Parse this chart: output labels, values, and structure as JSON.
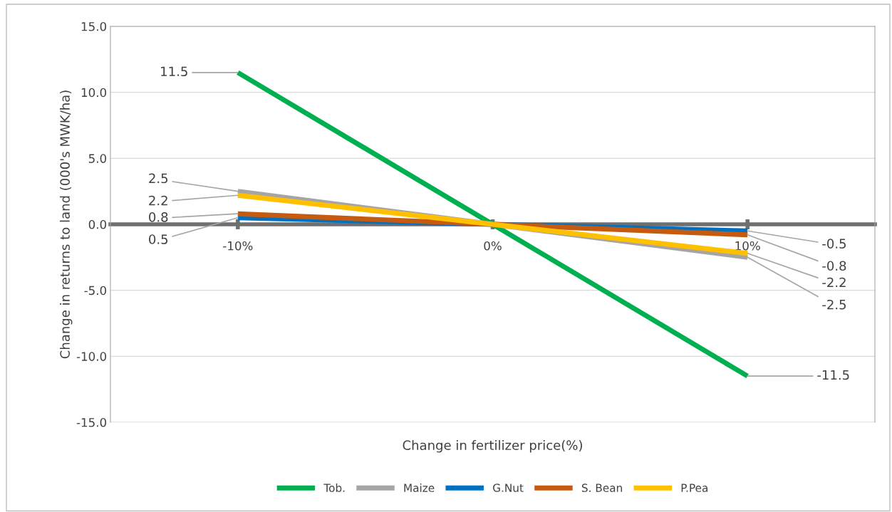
{
  "chart_data": {
    "type": "line",
    "xlabel": "Change in fertilizer price(%)",
    "ylabel": "Change in returns to land (000's MWK/ha)",
    "categories": [
      "-10%",
      "0%",
      "10%"
    ],
    "series": [
      {
        "name": "Tob.",
        "color": "#00b050",
        "values": [
          11.5,
          0,
          -11.5
        ],
        "value_labels": [
          "11.5",
          null,
          "-11.5"
        ]
      },
      {
        "name": "Maize",
        "color": "#a5a5a5",
        "values": [
          2.5,
          0,
          -2.5
        ],
        "value_labels": [
          "2.5",
          null,
          "-2.5"
        ]
      },
      {
        "name": "G.Nut",
        "color": "#0070c0",
        "values": [
          0.5,
          0,
          -0.5
        ],
        "value_labels": [
          "0.5",
          null,
          "-0.5"
        ]
      },
      {
        "name": "S. Bean",
        "color": "#c55a11",
        "values": [
          0.8,
          0,
          -0.8
        ],
        "value_labels": [
          "0.8",
          null,
          "-0.8"
        ]
      },
      {
        "name": "P.Pea",
        "color": "#ffc000",
        "values": [
          2.2,
          0,
          -2.2
        ],
        "value_labels": [
          "2.2",
          null,
          "-2.2"
        ]
      }
    ],
    "ylim": [
      -15,
      15
    ],
    "yticks": [
      {
        "value": -15,
        "label": "-15.0"
      },
      {
        "value": -10,
        "label": "-10.0"
      },
      {
        "value": -5,
        "label": "-5.0"
      },
      {
        "value": 0,
        "label": "0.0"
      },
      {
        "value": 5,
        "label": "5.0"
      },
      {
        "value": 10,
        "label": "10.0"
      },
      {
        "value": 15,
        "label": "15.0"
      }
    ],
    "grid": "y",
    "legend": "bottom",
    "marker": "none",
    "line_style": "solid"
  }
}
